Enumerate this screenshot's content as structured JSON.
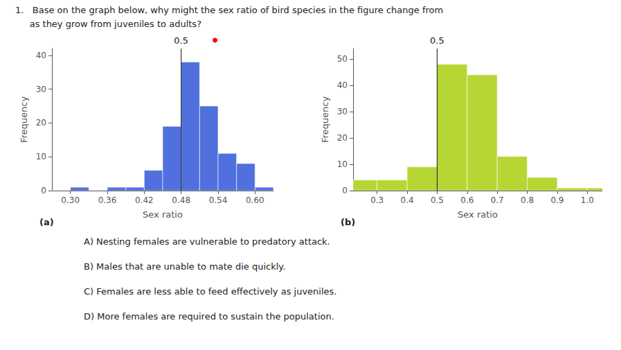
{
  "title": "1.   Base on the graph below, why might the sex ratio of bird species in the figure change from",
  "subtitle": "     as they grow from juveniles to adults?",
  "annotations": [
    "A) Nesting females are vulnerable to predatory attack.",
    "B) Males that are unable to mate die quickly.",
    "C) Females are less able to feed effectively as juveniles.",
    "D) More females are required to sustain the population."
  ],
  "chart_data": [
    {
      "type": "histogram",
      "label": "(a)",
      "xlabel": "Sex ratio",
      "ylabel": "Frequency",
      "bins": [
        0.27,
        0.3,
        0.33,
        0.36,
        0.39,
        0.42,
        0.45,
        0.48,
        0.51,
        0.54,
        0.57,
        0.6,
        0.63
      ],
      "values": [
        0,
        1,
        0,
        1,
        1,
        6,
        19,
        38,
        25,
        11,
        8,
        1
      ],
      "xlim": [
        0.27,
        0.63
      ],
      "ylim": [
        0,
        42
      ],
      "xticks": [
        {
          "value": 0.3,
          "label": "0.30"
        },
        0.36,
        0.42,
        0.48,
        0.54,
        {
          "value": 0.6,
          "label": "0.60"
        }
      ],
      "yticks": [
        0,
        10,
        20,
        30,
        40
      ],
      "grid": false,
      "vline": {
        "x": 0.48,
        "color": "#333333"
      },
      "annotations": [
        {
          "text": "0.5",
          "x": 0.48
        },
        {
          "marker": "circle",
          "x": 0.535,
          "color": "red"
        }
      ]
    },
    {
      "type": "histogram",
      "label": "(b)",
      "xlabel": "Sex ratio",
      "ylabel": "Frequency",
      "bins": [
        0.22,
        0.3,
        0.4,
        0.5,
        0.6,
        0.7,
        0.8,
        0.9,
        1.0,
        1.05
      ],
      "values": [
        4,
        4,
        9,
        48,
        44,
        13,
        5,
        1,
        1
      ],
      "xlim": [
        0.22,
        1.05
      ],
      "ylim": [
        0,
        54
      ],
      "xticks": [
        0.3,
        0.4,
        0.5,
        0.6,
        0.7,
        0.8,
        0.9,
        {
          "value": 1.0,
          "label": "1.0"
        }
      ],
      "yticks": [
        0,
        10,
        20,
        30,
        40,
        50
      ],
      "grid": false,
      "vline": {
        "x": 0.5,
        "color": "#333333"
      },
      "annotations": [
        {
          "text": "0.5",
          "x": 0.5
        }
      ]
    }
  ]
}
